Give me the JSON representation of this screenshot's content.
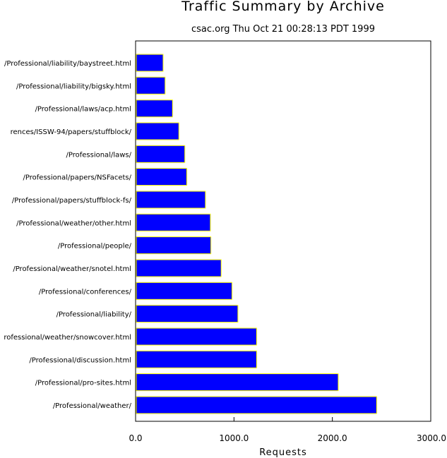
{
  "chart_data": {
    "type": "bar",
    "orientation": "horizontal",
    "title": "Traffic Summary by Archive",
    "subtitle": "csac.org Thu Oct 21 00:28:13 PDT 1999",
    "xlabel": "Requests",
    "ylabel": "",
    "xlim": [
      0,
      3000
    ],
    "xticks": [
      0,
      1000,
      2000,
      3000
    ],
    "xtick_labels": [
      "0.0",
      "1000.0",
      "2000.0",
      "3000.0"
    ],
    "grid": false,
    "legend": "none",
    "categories": [
      "/Professional/liability/baystreet.html",
      "/Professional/liability/bigsky.html",
      "/Professional/laws/acp.html",
      "rences/ISSW-94/papers/stuffblock/",
      "/Professional/laws/",
      "/Professional/papers/NSFacets/",
      "/Professional/papers/stuffblock-fs/",
      "/Professional/weather/other.html",
      "/Professional/people/",
      "/Professional/weather/snotel.html",
      "/Professional/conferences/",
      "/Professional/liability/",
      "rofessional/weather/snowcover.html",
      "/Professional/discussion.html",
      "/Professional/pro-sites.html",
      "/Professional/weather/"
    ],
    "values": [
      280,
      300,
      375,
      440,
      500,
      520,
      710,
      760,
      765,
      870,
      980,
      1040,
      1230,
      1230,
      2060,
      2450
    ],
    "colors": {
      "bar_fill": "#0000ff",
      "bar_edge": "#ffff00",
      "axis": "#000000",
      "background": "#ffffff"
    }
  }
}
